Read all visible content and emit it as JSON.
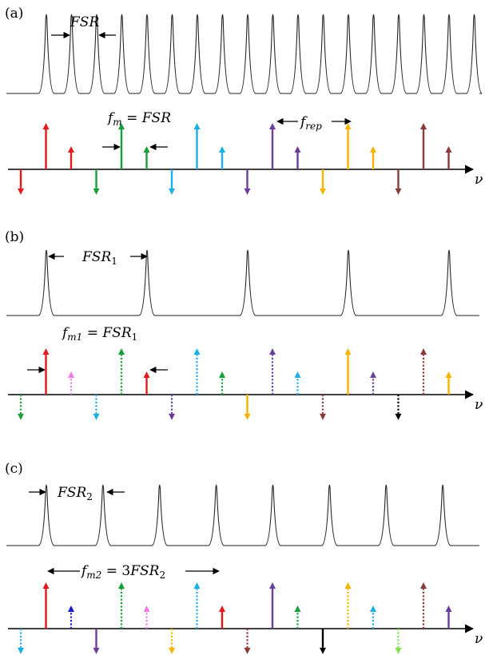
{
  "panels": [
    {
      "id": "a",
      "tag": "(a)",
      "fsr_label": {
        "main": "FSR",
        "sub": ""
      },
      "fm_label": {
        "lhs": "f",
        "lhs_sub": "m",
        "rhs": "FSR",
        "rhs_sub": "",
        "coef": ""
      },
      "frep_label": {
        "main": "f",
        "sub": "rep"
      },
      "axis_label": "ν",
      "resonance_spacing_fsr": 1,
      "resonance_count": 19,
      "arrows": [
        {
          "pos": 0,
          "h": -0.55,
          "color": "#e31a1c",
          "style": "solid"
        },
        {
          "pos": 1,
          "h": 1.0,
          "color": "#e31a1c",
          "style": "solid"
        },
        {
          "pos": 2,
          "h": 0.5,
          "color": "#e31a1c",
          "style": "solid"
        },
        {
          "pos": 3,
          "h": -0.55,
          "color": "#1a9e3c",
          "style": "solid"
        },
        {
          "pos": 4,
          "h": 1.0,
          "color": "#1a9e3c",
          "style": "solid"
        },
        {
          "pos": 5,
          "h": 0.5,
          "color": "#1a9e3c",
          "style": "solid"
        },
        {
          "pos": 6,
          "h": -0.55,
          "color": "#1eaee6",
          "style": "solid"
        },
        {
          "pos": 7,
          "h": 1.0,
          "color": "#1eaee6",
          "style": "solid"
        },
        {
          "pos": 8,
          "h": 0.5,
          "color": "#1eaee6",
          "style": "solid"
        },
        {
          "pos": 9,
          "h": -0.55,
          "color": "#6a3d9a",
          "style": "solid"
        },
        {
          "pos": 10,
          "h": 1.0,
          "color": "#6a3d9a",
          "style": "solid"
        },
        {
          "pos": 11,
          "h": 0.5,
          "color": "#6a3d9a",
          "style": "solid"
        },
        {
          "pos": 12,
          "h": -0.55,
          "color": "#f5b400",
          "style": "solid"
        },
        {
          "pos": 13,
          "h": 1.0,
          "color": "#f5b400",
          "style": "solid"
        },
        {
          "pos": 14,
          "h": 0.5,
          "color": "#f5b400",
          "style": "solid"
        },
        {
          "pos": 15,
          "h": -0.55,
          "color": "#8b3a3a",
          "style": "solid"
        },
        {
          "pos": 16,
          "h": 1.0,
          "color": "#8b3a3a",
          "style": "solid"
        },
        {
          "pos": 17,
          "h": 0.5,
          "color": "#8b3a3a",
          "style": "solid"
        }
      ]
    },
    {
      "id": "b",
      "tag": "(b)",
      "fsr_label": {
        "main": "FSR",
        "sub": "1"
      },
      "fm_label": {
        "lhs": "f",
        "lhs_sub": "m1",
        "rhs": "FSR",
        "rhs_sub": "1",
        "coef": ""
      },
      "axis_label": "ν",
      "resonance_spacing_fsr": 4,
      "resonance_count": 5,
      "arrows": [
        {
          "pos": 0,
          "h": -0.55,
          "color": "#1a9e3c",
          "style": "dotted"
        },
        {
          "pos": 1,
          "h": 1.0,
          "color": "#e31a1c",
          "style": "solid"
        },
        {
          "pos": 2,
          "h": 0.5,
          "color": "#f07ae8",
          "style": "dotted"
        },
        {
          "pos": 3,
          "h": -0.55,
          "color": "#1eaee6",
          "style": "dotted"
        },
        {
          "pos": 4,
          "h": 1.0,
          "color": "#1a9e3c",
          "style": "dotted"
        },
        {
          "pos": 5,
          "h": 0.5,
          "color": "#e31a1c",
          "style": "solid"
        },
        {
          "pos": 6,
          "h": -0.55,
          "color": "#6a3d9a",
          "style": "dotted"
        },
        {
          "pos": 7,
          "h": 1.0,
          "color": "#1eaee6",
          "style": "dotted"
        },
        {
          "pos": 8,
          "h": 0.5,
          "color": "#1a9e3c",
          "style": "dotted"
        },
        {
          "pos": 9,
          "h": -0.55,
          "color": "#f5b400",
          "style": "solid"
        },
        {
          "pos": 10,
          "h": 1.0,
          "color": "#6a3d9a",
          "style": "dotted"
        },
        {
          "pos": 11,
          "h": 0.5,
          "color": "#1eaee6",
          "style": "dotted"
        },
        {
          "pos": 12,
          "h": -0.55,
          "color": "#8b3a3a",
          "style": "dotted"
        },
        {
          "pos": 13,
          "h": 1.0,
          "color": "#f5b400",
          "style": "solid"
        },
        {
          "pos": 14,
          "h": 0.5,
          "color": "#6a3d9a",
          "style": "dotted"
        },
        {
          "pos": 15,
          "h": -0.55,
          "color": "#000000",
          "style": "dotted"
        },
        {
          "pos": 16,
          "h": 1.0,
          "color": "#8b3a3a",
          "style": "dotted"
        },
        {
          "pos": 17,
          "h": 0.5,
          "color": "#f5b400",
          "style": "solid"
        }
      ]
    },
    {
      "id": "c",
      "tag": "(c)",
      "fsr_label": {
        "main": "FSR",
        "sub": "2"
      },
      "fm_label": {
        "lhs": "f",
        "lhs_sub": "m2",
        "rhs": "FSR",
        "rhs_sub": "2",
        "coef": "3"
      },
      "axis_label": "ν",
      "resonance_spacing_fsr": 2.25,
      "resonance_count": 8,
      "arrows": [
        {
          "pos": 0,
          "h": -0.55,
          "color": "#1eaee6",
          "style": "dotted"
        },
        {
          "pos": 1,
          "h": 1.0,
          "color": "#e31a1c",
          "style": "solid"
        },
        {
          "pos": 2,
          "h": 0.5,
          "color": "#1a1acc",
          "style": "dotted"
        },
        {
          "pos": 3,
          "h": -0.55,
          "color": "#6a3d9a",
          "style": "solid"
        },
        {
          "pos": 4,
          "h": 1.0,
          "color": "#1a9e3c",
          "style": "dotted"
        },
        {
          "pos": 5,
          "h": 0.5,
          "color": "#f07ae8",
          "style": "dotted"
        },
        {
          "pos": 6,
          "h": -0.55,
          "color": "#f5b400",
          "style": "dotted"
        },
        {
          "pos": 7,
          "h": 1.0,
          "color": "#1eaee6",
          "style": "dotted"
        },
        {
          "pos": 8,
          "h": 0.5,
          "color": "#e31a1c",
          "style": "solid"
        },
        {
          "pos": 9,
          "h": -0.55,
          "color": "#8b3a3a",
          "style": "dotted"
        },
        {
          "pos": 10,
          "h": 1.0,
          "color": "#6a3d9a",
          "style": "solid"
        },
        {
          "pos": 11,
          "h": 0.5,
          "color": "#1a9e3c",
          "style": "dotted"
        },
        {
          "pos": 12,
          "h": -0.55,
          "color": "#000000",
          "style": "solid"
        },
        {
          "pos": 13,
          "h": 1.0,
          "color": "#f5b400",
          "style": "dotted"
        },
        {
          "pos": 14,
          "h": 0.5,
          "color": "#1eaee6",
          "style": "dotted"
        },
        {
          "pos": 15,
          "h": -0.55,
          "color": "#7ee04a",
          "style": "dotted"
        },
        {
          "pos": 16,
          "h": 1.0,
          "color": "#8b3a3a",
          "style": "dotted"
        },
        {
          "pos": 17,
          "h": 0.5,
          "color": "#6a3d9a",
          "style": "solid"
        }
      ]
    }
  ]
}
